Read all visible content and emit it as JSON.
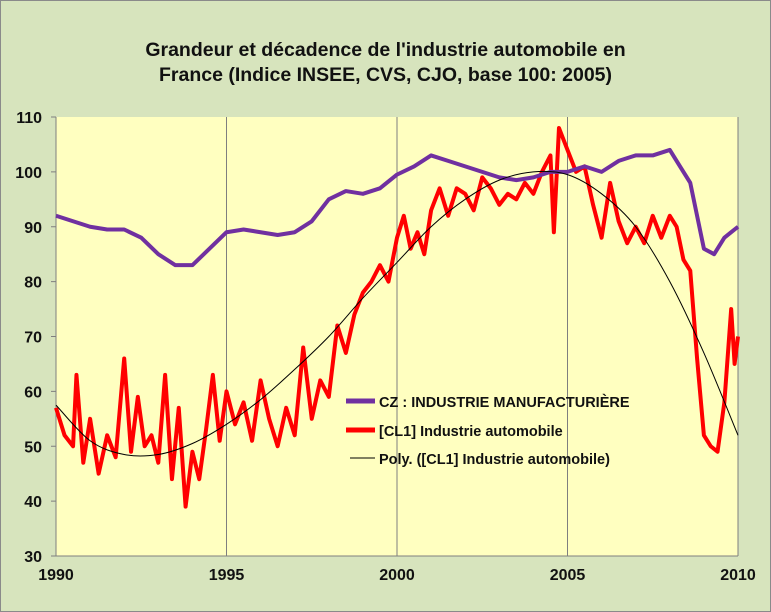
{
  "chart_data": {
    "type": "line",
    "title_line1": "Grandeur et décadence de l'industrie automobile en",
    "title_line2": "France (Indice INSEE, CVS, CJO, base 100: 2005)",
    "xlabel": "",
    "ylabel": "",
    "xlim": [
      1990,
      2010
    ],
    "ylim": [
      30,
      110
    ],
    "xticks": [
      "1990",
      "1995",
      "2000",
      "2005",
      "2010"
    ],
    "yticks": [
      "30",
      "40",
      "50",
      "60",
      "70",
      "80",
      "90",
      "100",
      "110"
    ],
    "grid": "vertical",
    "legend_position": "center-right",
    "series": [
      {
        "name": "CZ : INDUSTRIE MANUFACTURIÈRE",
        "color": "#7030a0",
        "x": [
          1990,
          1990.5,
          1991,
          1991.5,
          1992,
          1992.5,
          1993,
          1993.5,
          1994,
          1994.5,
          1995,
          1995.5,
          1996,
          1996.5,
          1997,
          1997.5,
          1998,
          1998.5,
          1999,
          1999.5,
          2000,
          2000.5,
          2001,
          2001.5,
          2002,
          2002.5,
          2003,
          2003.5,
          2004,
          2004.5,
          2005,
          2005.5,
          2006,
          2006.5,
          2007,
          2007.5,
          2008,
          2008.3,
          2008.6,
          2008.8,
          2009,
          2009.3,
          2009.6,
          2009.8,
          2010
        ],
        "y": [
          92,
          91,
          90,
          89.5,
          89.5,
          88,
          85,
          83,
          83,
          86,
          89,
          89.5,
          89,
          88.5,
          89,
          91,
          95,
          96.5,
          96,
          97,
          99.5,
          101,
          103,
          102,
          101,
          100,
          99,
          98.5,
          99,
          100,
          100,
          101,
          100,
          102,
          103,
          103,
          104,
          101,
          98,
          92,
          86,
          85,
          88,
          89,
          90
        ]
      },
      {
        "name": "[CL1] Industrie automobile",
        "color": "#ff0000",
        "x": [
          1990,
          1990.25,
          1990.5,
          1990.6,
          1990.8,
          1991,
          1991.25,
          1991.5,
          1991.75,
          1992,
          1992.2,
          1992.4,
          1992.6,
          1992.8,
          1993,
          1993.2,
          1993.4,
          1993.6,
          1993.8,
          1994,
          1994.2,
          1994.4,
          1994.6,
          1994.8,
          1995,
          1995.25,
          1995.5,
          1995.75,
          1996,
          1996.25,
          1996.5,
          1996.75,
          1997,
          1997.25,
          1997.5,
          1997.75,
          1998,
          1998.25,
          1998.5,
          1998.75,
          1999,
          1999.25,
          1999.5,
          1999.75,
          2000,
          2000.2,
          2000.4,
          2000.6,
          2000.8,
          2001,
          2001.25,
          2001.5,
          2001.75,
          2002,
          2002.25,
          2002.5,
          2002.75,
          2003,
          2003.25,
          2003.5,
          2003.75,
          2004,
          2004.25,
          2004.5,
          2004.6,
          2004.75,
          2005,
          2005.25,
          2005.5,
          2005.75,
          2006,
          2006.25,
          2006.5,
          2006.75,
          2007,
          2007.25,
          2007.5,
          2007.75,
          2008,
          2008.2,
          2008.4,
          2008.6,
          2008.8,
          2009,
          2009.2,
          2009.4,
          2009.6,
          2009.8,
          2009.9,
          2010
        ],
        "y": [
          57,
          52,
          50,
          63,
          47,
          55,
          45,
          52,
          48,
          66,
          49,
          59,
          50,
          52,
          47,
          63,
          44,
          57,
          39,
          49,
          44,
          53,
          63,
          51,
          60,
          54,
          58,
          51,
          62,
          55,
          50,
          57,
          52,
          68,
          55,
          62,
          59,
          72,
          67,
          74,
          78,
          80,
          83,
          80,
          88,
          92,
          86,
          89,
          85,
          93,
          97,
          92,
          97,
          96,
          93,
          99,
          97,
          94,
          96,
          95,
          98,
          96,
          100,
          103,
          89,
          108,
          104,
          100,
          101,
          94,
          88,
          98,
          91,
          87,
          90,
          87,
          92,
          88,
          92,
          90,
          84,
          82,
          66,
          52,
          50,
          49,
          58,
          75,
          65,
          70
        ]
      },
      {
        "name": "Poly. ([CL1] Industrie automobile)",
        "color": "#000000",
        "x": [
          1990,
          1991,
          1992,
          1993,
          1994,
          1995,
          1996,
          1997,
          1998,
          1999,
          2000,
          2001,
          2002,
          2003,
          2004,
          2005,
          2006,
          2007,
          2008,
          2009,
          2010
        ],
        "y": [
          57.5,
          51,
          48.5,
          48.5,
          50.5,
          54,
          58.5,
          64,
          70,
          77,
          83.5,
          90,
          95,
          98.5,
          100,
          99.5,
          96,
          90,
          80,
          67,
          52
        ]
      }
    ]
  }
}
